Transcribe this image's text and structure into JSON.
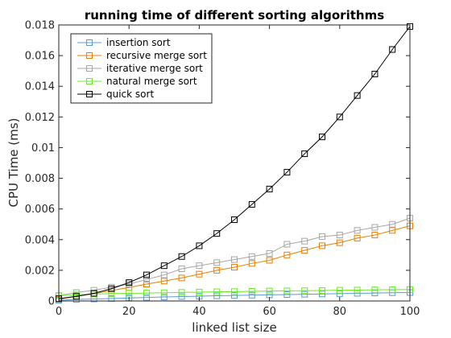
{
  "chart_data": {
    "type": "line",
    "title": "running time of different sorting algorithms",
    "xlabel": "linked list size",
    "ylabel": "CPU Time (ms)",
    "xlim": [
      0,
      100
    ],
    "ylim": [
      0,
      0.018
    ],
    "xticks": [
      "0",
      "20",
      "40",
      "60",
      "80",
      "100"
    ],
    "yticks": [
      "0",
      "0.002",
      "0.004",
      "0.006",
      "0.008",
      "0.01",
      "0.012",
      "0.014",
      "0.016",
      "0.018"
    ],
    "legend_position": "top-left",
    "grid": false,
    "x": [
      0,
      5,
      10,
      15,
      20,
      25,
      30,
      35,
      40,
      45,
      50,
      55,
      60,
      65,
      70,
      75,
      80,
      85,
      90,
      95,
      100
    ],
    "series": [
      {
        "name": "insertion sort",
        "color": "#5b9bd5",
        "marker": "square",
        "values": [
          5e-05,
          0.0001,
          0.00013,
          0.00016,
          0.0002,
          0.00023,
          0.00026,
          0.00029,
          0.00031,
          0.00034,
          0.00036,
          0.00038,
          0.0004,
          0.00042,
          0.00044,
          0.00046,
          0.00048,
          0.0005,
          0.00052,
          0.00054,
          0.00055
        ]
      },
      {
        "name": "recursive merge sort",
        "color": "#ed7d00",
        "marker": "square",
        "values": [
          0.00012,
          0.0003,
          0.00048,
          0.00068,
          0.00088,
          0.0011,
          0.0013,
          0.0015,
          0.00175,
          0.002,
          0.0022,
          0.00245,
          0.00265,
          0.003,
          0.0033,
          0.0036,
          0.0038,
          0.0041,
          0.0043,
          0.0046,
          0.0049
        ]
      },
      {
        "name": "iterative merge sort",
        "color": "#a5a5a5",
        "marker": "square",
        "values": [
          0.00035,
          0.00055,
          0.0007,
          0.0009,
          0.0011,
          0.0014,
          0.0017,
          0.0021,
          0.0023,
          0.0025,
          0.0027,
          0.0029,
          0.0031,
          0.0037,
          0.0039,
          0.0042,
          0.0043,
          0.0046,
          0.0048,
          0.005,
          0.0054
        ]
      },
      {
        "name": "natural merge sort",
        "color": "#66ee22",
        "marker": "square",
        "values": [
          0.00035,
          0.0004,
          0.00045,
          0.00048,
          0.0005,
          0.00052,
          0.00054,
          0.00056,
          0.00058,
          0.0006,
          0.00061,
          0.00063,
          0.00065,
          0.00066,
          0.00067,
          0.00068,
          0.0007,
          0.00071,
          0.00073,
          0.00074,
          0.00075
        ]
      },
      {
        "name": "quick sort",
        "color": "#000000",
        "marker": "square",
        "values": [
          0.00015,
          0.0003,
          0.0005,
          0.0008,
          0.0012,
          0.0017,
          0.0023,
          0.0029,
          0.0036,
          0.0044,
          0.0053,
          0.0063,
          0.0073,
          0.0084,
          0.0096,
          0.0107,
          0.012,
          0.0134,
          0.0148,
          0.0164,
          0.0179
        ]
      }
    ]
  }
}
